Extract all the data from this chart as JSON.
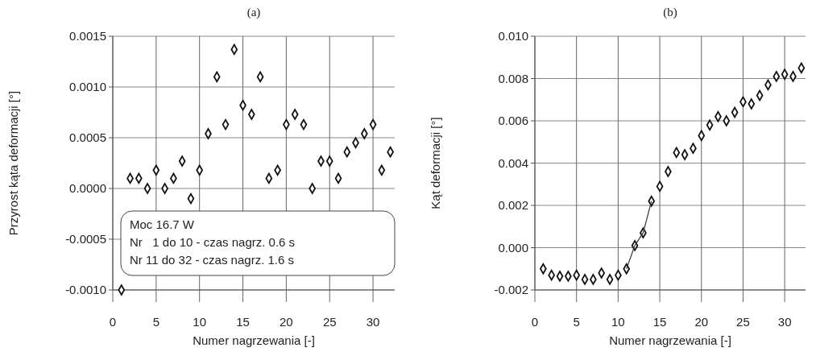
{
  "chart_data": [
    {
      "type": "scatter",
      "title": "(a)",
      "xlabel": "Numer nagrzewania [-]",
      "ylabel": "Przyrost kąta deformacji [°]",
      "marker": "diamond",
      "grid": true,
      "xlim": [
        0,
        32.5
      ],
      "xticks": [
        0,
        5,
        10,
        15,
        20,
        25,
        30
      ],
      "ylim": [
        -0.001,
        0.0015
      ],
      "yticks": [
        {
          "value": -0.001,
          "label": "-0.0010"
        },
        {
          "value": -0.0005,
          "label": "-0.0005"
        },
        {
          "value": 0,
          "label": "0.0000"
        },
        {
          "value": 0.0005,
          "label": "0.0005"
        },
        {
          "value": 0.001,
          "label": "0.0010"
        },
        {
          "value": 0.0015,
          "label": "0.0015"
        }
      ],
      "annotations": [
        "Moc 16.7 W",
        "Nr   1 do 10 - czas nagrz. 0.6 s",
        "Nr 11 do 32 - czas nagrz. 1.6 s"
      ],
      "series": [
        {
          "color": "#111111",
          "x": [
            1,
            2,
            3,
            4,
            5,
            6,
            7,
            8,
            9,
            10,
            11,
            12,
            13,
            14,
            15,
            16,
            17,
            18,
            19,
            20,
            21,
            22,
            23,
            24,
            25,
            26,
            27,
            28,
            29,
            30,
            31,
            32
          ],
          "values": [
            -0.001,
            0.0001,
            0.0001,
            0,
            0.00018,
            0,
            0.0001,
            0.00027,
            -0.0001,
            0.00018,
            0.00054,
            0.0011,
            0.00063,
            0.00137,
            0.00082,
            0.00073,
            0.0011,
            0.0001,
            0.00018,
            0.00063,
            0.00073,
            0.00063,
            0,
            0.00027,
            0.00027,
            0.0001,
            0.00036,
            0.00045,
            0.00054,
            0.00063,
            0.00018,
            0.00036
          ]
        }
      ]
    },
    {
      "type": "scatter",
      "title": "(b)",
      "xlabel": "Numer nagrzewania [-]",
      "ylabel": "Kąt deformacji [°]",
      "marker": "diamond",
      "grid": true,
      "xlim": [
        0,
        32.5
      ],
      "xticks": [
        0,
        5,
        10,
        15,
        20,
        25,
        30
      ],
      "ylim": [
        -0.002,
        0.01
      ],
      "yticks": [
        {
          "value": -0.002,
          "label": "-0.002"
        },
        {
          "value": 0,
          "label": "0.000"
        },
        {
          "value": 0.002,
          "label": "0.002"
        },
        {
          "value": 0.004,
          "label": "0.004"
        },
        {
          "value": 0.006,
          "label": "0.006"
        },
        {
          "value": 0.008,
          "label": "0.008"
        },
        {
          "value": 0.01,
          "label": "0.010"
        }
      ],
      "series": [
        {
          "color": "#111111",
          "x": [
            1,
            2,
            3,
            4,
            5,
            6,
            7,
            8,
            9,
            10,
            11,
            12,
            13,
            14,
            15,
            16,
            17,
            18,
            19,
            20,
            21,
            22,
            23,
            24,
            25,
            26,
            27,
            28,
            29,
            30,
            31,
            32
          ],
          "values": [
            -0.001,
            -0.0013,
            -0.00135,
            -0.00135,
            -0.0013,
            -0.0015,
            -0.0015,
            -0.0012,
            -0.0015,
            -0.0013,
            -0.001,
            0.0001,
            0.0007,
            0.0022,
            0.0029,
            0.0036,
            0.0045,
            0.0044,
            0.0047,
            0.0053,
            0.0058,
            0.0062,
            0.006,
            0.0064,
            0.0069,
            0.0068,
            0.0072,
            0.0077,
            0.0081,
            0.0082,
            0.0081,
            0.0085
          ]
        },
        {
          "type": "line",
          "color": "#333333",
          "marker": "none",
          "x": [
            11,
            12,
            13,
            14
          ],
          "values": [
            -0.001,
            0.0001,
            0.0007,
            0.0022
          ]
        }
      ]
    }
  ]
}
